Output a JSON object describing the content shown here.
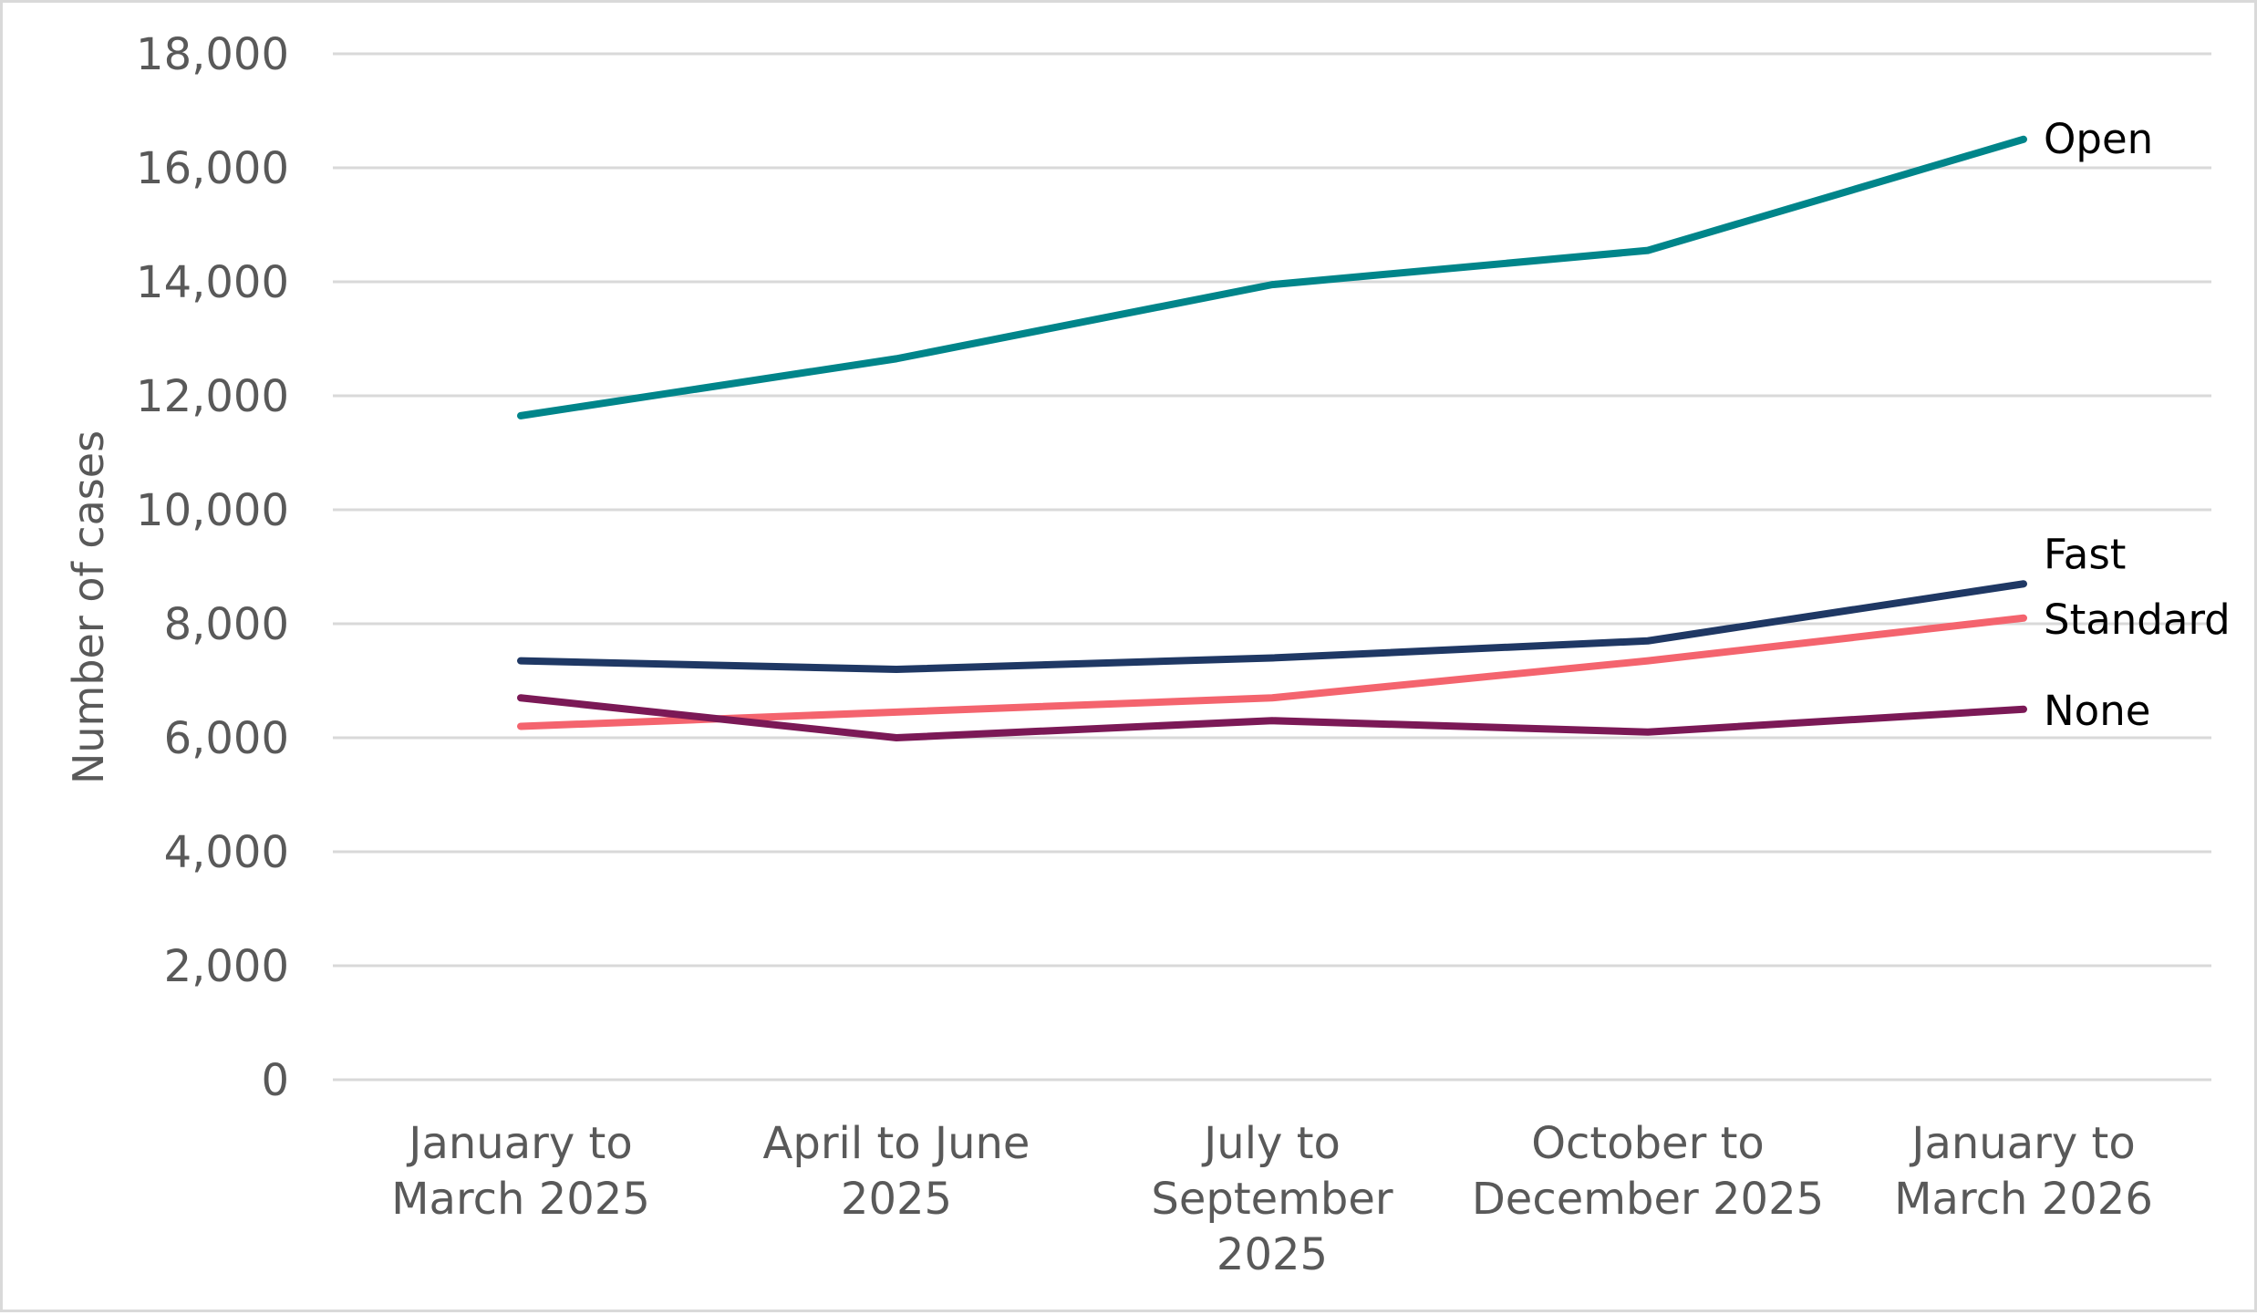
{
  "chart_data": {
    "type": "line",
    "title": "",
    "xlabel": "",
    "ylabel": "Number of cases",
    "ylim": [
      0,
      18000
    ],
    "yticks": [
      0,
      2000,
      4000,
      6000,
      8000,
      10000,
      12000,
      14000,
      16000,
      18000
    ],
    "ytick_labels": [
      "0",
      "2,000",
      "4,000",
      "6,000",
      "8,000",
      "10,000",
      "12,000",
      "14,000",
      "16,000",
      "18,000"
    ],
    "grid": "horizontal",
    "legend": "labels at line ends",
    "categories": [
      [
        "January to",
        "March 2025"
      ],
      [
        "April to June",
        "2025"
      ],
      [
        "July to",
        "September",
        "2025"
      ],
      [
        "October to",
        "December 2025"
      ],
      [
        "January to",
        "March 2026"
      ]
    ],
    "series": [
      {
        "name": "Open",
        "color": "#00858a",
        "values": [
          11650,
          12650,
          13950,
          14550,
          16500
        ]
      },
      {
        "name": "Fast",
        "color": "#1f3864",
        "values": [
          7350,
          7200,
          7400,
          7700,
          8700
        ]
      },
      {
        "name": "Standard",
        "color": "#f4646e",
        "values": [
          6200,
          6450,
          6700,
          7350,
          8100
        ]
      },
      {
        "name": "None",
        "color": "#7b1956",
        "values": [
          6700,
          6000,
          6300,
          6100,
          6500
        ]
      }
    ]
  }
}
